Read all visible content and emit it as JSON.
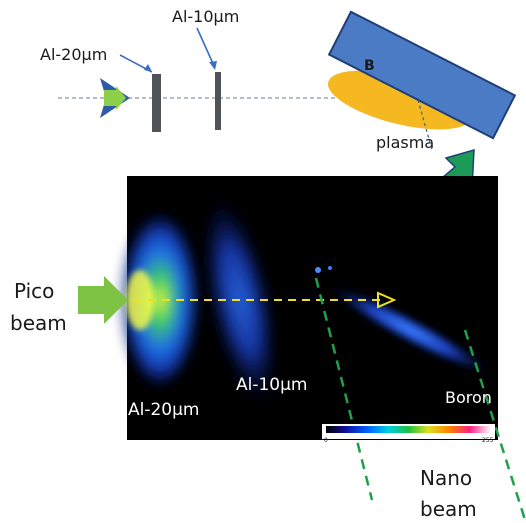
{
  "top_diagram": {
    "label_al20": "Al-20μm",
    "label_al10": "Al-10μm",
    "target_label": "B",
    "plasma_label": "plasma"
  },
  "image_panel": {
    "label_al20": "Al-20μm",
    "label_al10": "Al-10μm",
    "label_boron": "Boron",
    "colorbar_min": "0",
    "colorbar_max": "255"
  },
  "side_labels": {
    "pico_line1": "Pico",
    "pico_line2": "beam",
    "nano_line1": "Nano",
    "nano_line2": "beam"
  },
  "colors": {
    "target_blue": "#4a7bc4",
    "plasma_orange": "#f5b820",
    "beam_green": "#7dc243",
    "dashed_green": "#1fa04a",
    "dashed_yellow": "#f0e020",
    "panel_black": "#000000"
  }
}
